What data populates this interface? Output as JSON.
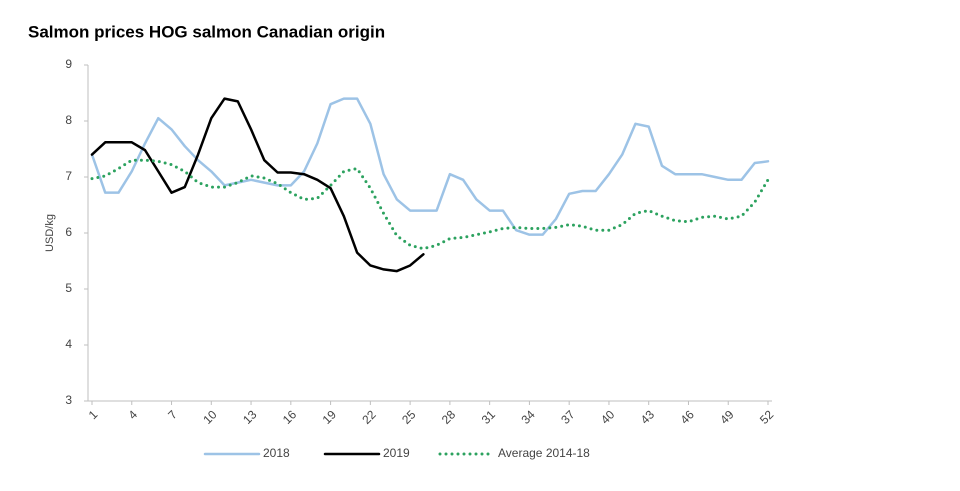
{
  "chart_data": {
    "type": "line",
    "title": "Salmon prices HOG salmon Canadian origin",
    "y_label": "USD/kg",
    "x": [
      1,
      2,
      3,
      4,
      5,
      6,
      7,
      8,
      9,
      10,
      11,
      12,
      13,
      14,
      15,
      16,
      17,
      18,
      19,
      20,
      21,
      22,
      23,
      24,
      25,
      26,
      27,
      28,
      29,
      30,
      31,
      32,
      33,
      34,
      35,
      36,
      37,
      38,
      39,
      40,
      41,
      42,
      43,
      44,
      45,
      46,
      47,
      48,
      49,
      50,
      51,
      52
    ],
    "xlim": [
      1,
      52
    ],
    "xticks": [
      1,
      4,
      7,
      10,
      13,
      16,
      19,
      22,
      25,
      28,
      31,
      34,
      37,
      40,
      43,
      46,
      49,
      52
    ],
    "ylim": [
      3,
      9
    ],
    "yticks": [
      3,
      4,
      5,
      6,
      7,
      8,
      9
    ],
    "grid": false,
    "legend": "bottom",
    "series": [
      {
        "name": "2018",
        "color": "#9dc3e6",
        "style": "solid",
        "values": [
          7.4,
          6.72,
          6.72,
          7.1,
          7.6,
          8.05,
          7.85,
          7.55,
          7.3,
          7.1,
          6.85,
          6.9,
          6.95,
          6.9,
          6.85,
          6.85,
          7.1,
          7.6,
          8.3,
          8.4,
          8.4,
          7.95,
          7.05,
          6.6,
          6.4,
          6.4,
          6.4,
          7.05,
          6.95,
          6.6,
          6.4,
          6.4,
          6.05,
          5.97,
          5.97,
          6.25,
          6.7,
          6.75,
          6.75,
          7.05,
          7.4,
          7.95,
          7.9,
          7.2,
          7.05,
          7.05,
          7.05,
          7.0,
          6.95,
          6.95,
          7.25,
          7.28
        ]
      },
      {
        "name": "2019",
        "color": "#000000",
        "style": "solid",
        "values": [
          7.4,
          7.62,
          7.62,
          7.62,
          7.48,
          7.1,
          6.72,
          6.82,
          7.4,
          8.05,
          8.4,
          8.35,
          7.85,
          7.3,
          7.08,
          7.08,
          7.05,
          6.95,
          6.8,
          6.3,
          5.65,
          5.42,
          5.35,
          5.32,
          5.42,
          5.62,
          null,
          null,
          null,
          null,
          null,
          null,
          null,
          null,
          null,
          null,
          null,
          null,
          null,
          null,
          null,
          null,
          null,
          null,
          null,
          null,
          null,
          null,
          null,
          null,
          null,
          null
        ]
      },
      {
        "name": "Average 2014-18",
        "color": "#2ca25f",
        "style": "dotted",
        "values": [
          6.97,
          7.02,
          7.15,
          7.3,
          7.3,
          7.28,
          7.22,
          7.1,
          6.9,
          6.82,
          6.82,
          6.9,
          7.02,
          6.98,
          6.88,
          6.72,
          6.6,
          6.62,
          6.85,
          7.1,
          7.15,
          6.8,
          6.35,
          5.95,
          5.78,
          5.72,
          5.78,
          5.9,
          5.92,
          5.97,
          6.02,
          6.08,
          6.1,
          6.08,
          6.08,
          6.1,
          6.15,
          6.12,
          6.05,
          6.05,
          6.15,
          6.35,
          6.4,
          6.3,
          6.22,
          6.2,
          6.28,
          6.3,
          6.25,
          6.3,
          6.55,
          6.95
        ]
      }
    ]
  }
}
